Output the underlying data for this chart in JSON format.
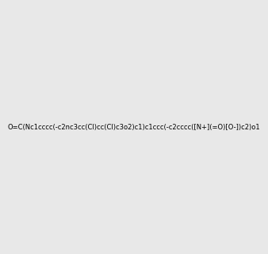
{
  "smiles": "O=C(Nc1cccc(-c2nc3cc(Cl)cc(Cl)c3o2)c1)c1ccc(-c2cccc([N+](=O)[O-])c2)o1",
  "title": "",
  "background_color": "#e8e8e8",
  "img_size": [
    300,
    300
  ]
}
